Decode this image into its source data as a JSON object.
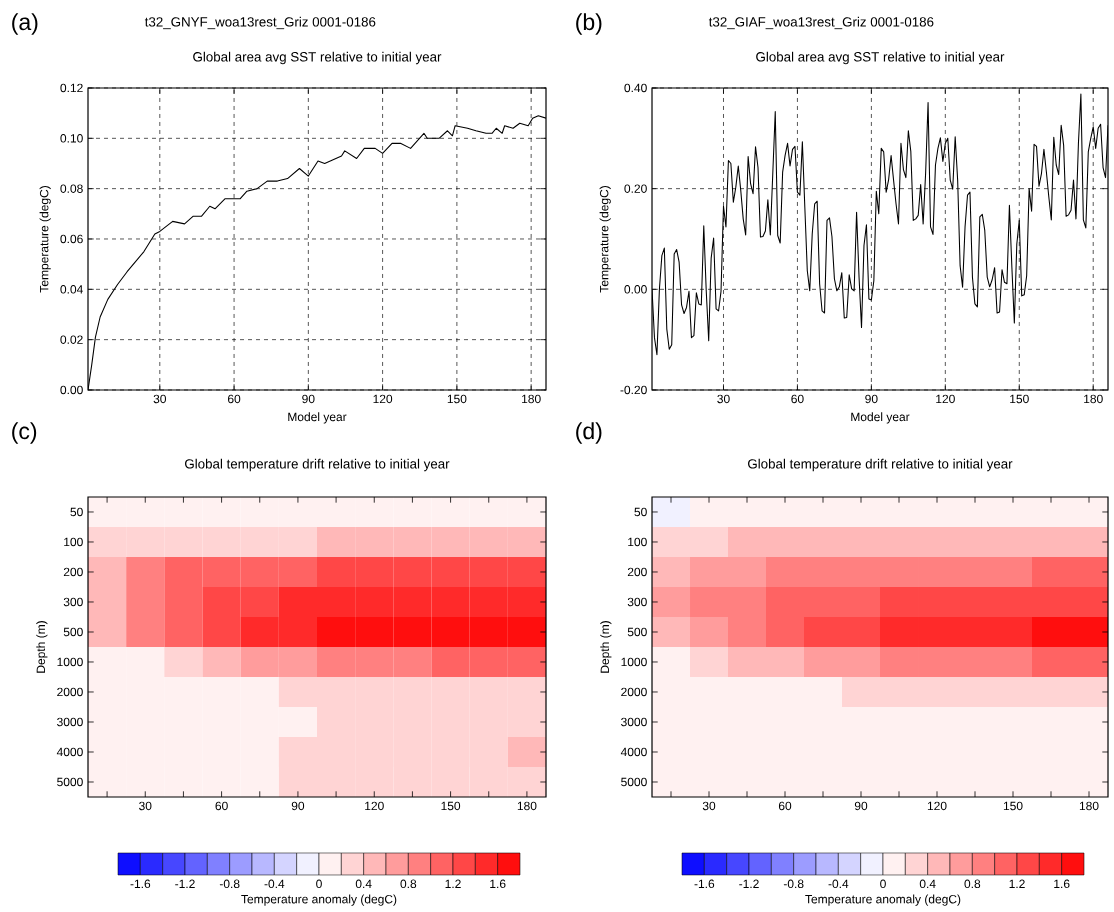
{
  "chart_data": [
    {
      "type": "line",
      "title": "t32_GNYF_woa13rest_Griz 0001-0186",
      "subtitle": "Global area avg SST relative to initial year",
      "annotations": [
        "(a)"
      ],
      "xlabel": "Model year",
      "ylabel": "Temperature (degC)",
      "color": "#000000",
      "grid": true,
      "x": [
        1,
        2.5,
        4,
        5.9,
        9,
        13,
        16.8,
        20.2,
        23.6,
        28,
        30,
        35.2,
        40,
        43.4,
        46.8,
        50.2,
        52.3,
        56.4,
        59.8,
        62.5,
        65.2,
        69.3,
        73.4,
        77.5,
        81.6,
        86.4,
        90,
        93.9,
        96.6,
        103.4,
        104.7,
        109.5,
        112.6,
        117,
        120,
        123.8,
        127.2,
        131.3,
        136.7,
        138,
        142.8,
        146.2,
        148.2,
        149.3,
        154.3,
        157.7,
        161.8,
        164.2,
        165.9,
        168.3,
        169.3,
        172.7,
        175.4,
        178.8,
        180.6,
        182.9,
        186
      ],
      "values": [
        0,
        0.01,
        0.021,
        0.029,
        0.036,
        0.042,
        0.047,
        0.051,
        0.055,
        0.062,
        0.063,
        0.067,
        0.066,
        0.069,
        0.069,
        0.073,
        0.072,
        0.076,
        0.076,
        0.076,
        0.079,
        0.08,
        0.083,
        0.083,
        0.084,
        0.088,
        0.085,
        0.091,
        0.09,
        0.093,
        0.095,
        0.092,
        0.096,
        0.096,
        0.094,
        0.098,
        0.098,
        0.096,
        0.102,
        0.1,
        0.1,
        0.103,
        0.101,
        0.105,
        0.104,
        0.103,
        0.102,
        0.102,
        0.104,
        0.102,
        0.105,
        0.104,
        0.106,
        0.105,
        0.108,
        0.109,
        0.108
      ],
      "xlim": [
        1,
        186
      ],
      "ylim": [
        0,
        0.12
      ],
      "xticks": [
        30,
        60,
        90,
        120,
        150,
        180
      ],
      "yticks": [
        {
          "value": 0,
          "label": "0.00"
        },
        {
          "value": 0.02,
          "label": "0.02"
        },
        {
          "value": 0.04,
          "label": "0.04"
        },
        {
          "value": 0.06,
          "label": "0.06"
        },
        {
          "value": 0.08,
          "label": "0.08"
        },
        {
          "value": 0.1,
          "label": "0.10"
        },
        {
          "value": 0.12,
          "label": "0.12"
        }
      ]
    },
    {
      "type": "line",
      "title": "t32_GIAF_woa13rest_Griz 0001-0186",
      "subtitle": "Global area avg SST relative to initial year",
      "annotations": [
        "(b)"
      ],
      "xlabel": "Model year",
      "ylabel": "Temperature (degC)",
      "color": "#000000",
      "grid": true,
      "x": [
        1,
        2,
        3,
        4,
        5,
        6,
        7,
        8,
        9,
        10,
        11,
        12,
        13,
        14,
        15,
        16,
        17,
        18,
        19,
        20,
        21,
        22,
        23,
        24,
        25,
        26,
        27,
        28,
        29,
        30,
        31,
        32,
        33,
        34,
        35,
        36,
        37,
        38,
        39,
        40,
        41,
        42,
        43,
        44,
        45,
        46,
        47,
        48,
        49,
        50,
        51,
        52,
        53,
        54,
        55,
        56,
        57,
        58,
        59,
        60,
        61,
        62,
        63,
        64,
        65,
        66,
        67,
        68,
        69,
        70,
        71,
        72,
        73,
        74,
        75,
        76,
        77,
        78,
        79,
        80,
        81,
        82,
        83,
        84,
        85,
        86,
        87,
        88,
        89,
        90,
        91,
        92,
        93,
        94,
        95,
        96,
        97,
        98,
        99,
        100,
        101,
        102,
        103,
        104,
        105,
        106,
        107,
        108,
        109,
        110,
        111,
        112,
        113,
        114,
        115,
        116,
        117,
        118,
        119,
        120,
        121,
        122,
        123,
        124,
        125,
        126,
        127,
        128,
        129,
        130,
        131,
        132,
        133,
        134,
        135,
        136,
        137,
        138,
        139,
        140,
        141,
        142,
        143,
        144,
        145,
        146,
        147,
        148,
        149,
        150,
        151,
        152,
        153,
        154,
        155,
        156,
        157,
        158,
        159,
        160,
        161,
        162,
        163,
        164,
        165,
        166,
        167,
        168,
        169,
        170,
        171,
        172,
        173,
        174,
        175,
        176,
        177,
        178,
        179,
        180,
        181,
        182,
        183,
        184,
        185,
        186
      ],
      "values": [
        0.0,
        -0.096,
        -0.13,
        0.0,
        0.067,
        0.082,
        -0.079,
        -0.119,
        -0.11,
        0.07,
        0.079,
        0.054,
        -0.031,
        -0.048,
        -0.036,
        -0.004,
        -0.096,
        -0.092,
        -0.007,
        -0.029,
        -0.031,
        0.126,
        -0.003,
        -0.102,
        0.062,
        0.102,
        -0.039,
        -0.043,
        -0.004,
        0.165,
        0.124,
        0.256,
        0.25,
        0.173,
        0.203,
        0.245,
        0.197,
        0.14,
        0.108,
        0.264,
        0.21,
        0.19,
        0.283,
        0.242,
        0.104,
        0.105,
        0.116,
        0.178,
        0.108,
        0.23,
        0.353,
        0.107,
        0.092,
        0.233,
        0.266,
        0.29,
        0.245,
        0.278,
        0.284,
        0.193,
        0.187,
        0.293,
        0.163,
        0.037,
        -0.003,
        0.11,
        0.17,
        0.175,
        0.011,
        -0.043,
        -0.047,
        0.137,
        0.142,
        0.105,
        0.021,
        -0.003,
        0.005,
        0.033,
        -0.057,
        -0.056,
        0.029,
        0.001,
        -0.003,
        0.153,
        0.024,
        -0.076,
        0.087,
        0.128,
        -0.019,
        -0.021,
        0.017,
        0.195,
        0.15,
        0.28,
        0.273,
        0.193,
        0.218,
        0.266,
        0.217,
        0.17,
        0.13,
        0.29,
        0.238,
        0.222,
        0.315,
        0.274,
        0.137,
        0.14,
        0.147,
        0.208,
        0.13,
        0.23,
        0.371,
        0.124,
        0.109,
        0.247,
        0.28,
        0.301,
        0.254,
        0.29,
        0.3,
        0.217,
        0.199,
        0.303,
        0.217,
        0.047,
        0.004,
        0.124,
        0.187,
        0.193,
        0.024,
        -0.029,
        -0.035,
        0.144,
        0.149,
        0.117,
        0.024,
        0.005,
        0.019,
        0.043,
        -0.047,
        -0.045,
        0.039,
        0.014,
        0.011,
        0.167,
        0.044,
        -0.067,
        0.09,
        0.137,
        -0.013,
        -0.011,
        0.027,
        0.2,
        0.155,
        0.288,
        0.284,
        0.205,
        0.23,
        0.278,
        0.233,
        0.183,
        0.138,
        0.302,
        0.247,
        0.228,
        0.326,
        0.286,
        0.145,
        0.148,
        0.157,
        0.217,
        0.14,
        0.29,
        0.388,
        0.138,
        0.122,
        0.273,
        0.3,
        0.323,
        0.28,
        0.32,
        0.328,
        0.242,
        0.222,
        0.326
      ],
      "xlim": [
        1,
        186
      ],
      "ylim": [
        -0.2,
        0.4
      ],
      "xticks": [
        30,
        60,
        90,
        120,
        150,
        180
      ],
      "yticks": [
        {
          "value": -0.2,
          "label": "-0.20"
        },
        {
          "value": 0,
          "label": "0.00"
        },
        {
          "value": 0.2,
          "label": "0.20"
        },
        {
          "value": 0.4,
          "label": "0.40"
        }
      ]
    },
    {
      "type": "heatmap",
      "title": "Global temperature drift relative to initial year",
      "annotations": [
        "(c)"
      ],
      "ylabel": "Depth (m)",
      "clabel": "Temperature anomaly (degC)",
      "categories": [
        null,
        "30",
        null,
        "60",
        null,
        "90",
        null,
        "120",
        null,
        "150",
        null,
        "180"
      ],
      "y_categories": [
        "50",
        "100",
        "200",
        "300",
        "500",
        "1000",
        "2000",
        "3000",
        "4000",
        "5000"
      ],
      "cells": [
        [
          0.05,
          0.1,
          0.1,
          0.1,
          0.1,
          0.1,
          0.1,
          0.1,
          0.1,
          0.1,
          0.1,
          0.1
        ],
        [
          0.25,
          0.35,
          0.4,
          0.4,
          0.4,
          0.4,
          0.45,
          0.45,
          0.45,
          0.45,
          0.45,
          0.45
        ],
        [
          0.5,
          0.9,
          1.05,
          1.1,
          1.15,
          1.2,
          1.25,
          1.25,
          1.25,
          1.3,
          1.3,
          1.3
        ],
        [
          0.5,
          0.9,
          1.1,
          1.25,
          1.35,
          1.45,
          1.5,
          1.55,
          1.55,
          1.55,
          1.55,
          1.55
        ],
        [
          0.45,
          0.85,
          1.1,
          1.25,
          1.45,
          1.55,
          1.65,
          1.7,
          1.7,
          1.75,
          1.75,
          1.85
        ],
        [
          0.15,
          0.2,
          0.35,
          0.5,
          0.65,
          0.75,
          0.85,
          0.95,
          1.0,
          1.1,
          1.15,
          1.2
        ],
        [
          0.1,
          0.15,
          0.15,
          0.2,
          0.2,
          0.25,
          0.3,
          0.3,
          0.35,
          0.35,
          0.4,
          0.4
        ],
        [
          0.1,
          0.1,
          0.1,
          0.1,
          0.1,
          0.15,
          0.25,
          0.25,
          0.25,
          0.25,
          0.3,
          0.3
        ],
        [
          0.1,
          0.1,
          0.1,
          0.1,
          0.15,
          0.25,
          0.25,
          0.25,
          0.25,
          0.25,
          0.4,
          0.45
        ],
        [
          0.1,
          0.1,
          0.1,
          0.1,
          0.15,
          0.25,
          0.25,
          0.25,
          0.25,
          0.25,
          0.25,
          0.3
        ]
      ],
      "clim": [
        -1.8,
        1.8
      ],
      "cticks": [
        -1.6,
        -1.2,
        -0.8,
        -0.4,
        0,
        0.4,
        0.8,
        1.2,
        1.6
      ]
    },
    {
      "type": "heatmap",
      "title": "Global temperature drift relative to initial year",
      "annotations": [
        "(d)"
      ],
      "ylabel": "Depth (m)",
      "clabel": "Temperature anomaly (degC)",
      "categories": [
        null,
        "30",
        null,
        "60",
        null,
        "90",
        null,
        "120",
        null,
        "150",
        null,
        "180"
      ],
      "y_categories": [
        "50",
        "100",
        "200",
        "300",
        "500",
        "1000",
        "2000",
        "3000",
        "4000",
        "5000"
      ],
      "cells": [
        [
          -0.05,
          0.1,
          0.1,
          0.1,
          0.15,
          0.1,
          0.1,
          0.15,
          0.1,
          0.15,
          0.1,
          0.1
        ],
        [
          0.3,
          0.4,
          0.45,
          0.45,
          0.45,
          0.45,
          0.45,
          0.45,
          0.45,
          0.5,
          0.5,
          0.5
        ],
        [
          0.6,
          0.75,
          0.8,
          0.85,
          0.85,
          0.9,
          0.9,
          0.95,
          1.0,
          1.0,
          1.05,
          1.05
        ],
        [
          0.7,
          0.85,
          0.95,
          1.1,
          1.2,
          1.2,
          1.25,
          1.3,
          1.35,
          1.3,
          1.3,
          1.3
        ],
        [
          0.5,
          0.8,
          0.95,
          1.05,
          1.25,
          1.3,
          1.45,
          1.5,
          1.55,
          1.6,
          1.65,
          1.65
        ],
        [
          0.2,
          0.35,
          0.5,
          0.6,
          0.7,
          0.8,
          0.85,
          0.9,
          0.95,
          1.0,
          1.05,
          1.1
        ],
        [
          0.1,
          0.15,
          0.15,
          0.2,
          0.2,
          0.25,
          0.3,
          0.3,
          0.35,
          0.35,
          0.4,
          0.4
        ],
        [
          0.1,
          0.1,
          0.1,
          0.1,
          0.1,
          0.1,
          0.1,
          0.1,
          0.1,
          0.1,
          0.1,
          0.1
        ],
        [
          0.1,
          0.1,
          0.1,
          0.1,
          0.1,
          0.1,
          0.1,
          0.1,
          0.1,
          0.1,
          0.1,
          0.1
        ],
        [
          0.1,
          0.1,
          0.1,
          0.1,
          0.1,
          0.1,
          0.1,
          0.1,
          0.1,
          0.1,
          0.1,
          0.1
        ]
      ],
      "clim": [
        -1.8,
        1.8
      ],
      "cticks": [
        -1.6,
        -1.2,
        -0.8,
        -0.4,
        0,
        0.4,
        0.8,
        1.2,
        1.6
      ]
    }
  ]
}
